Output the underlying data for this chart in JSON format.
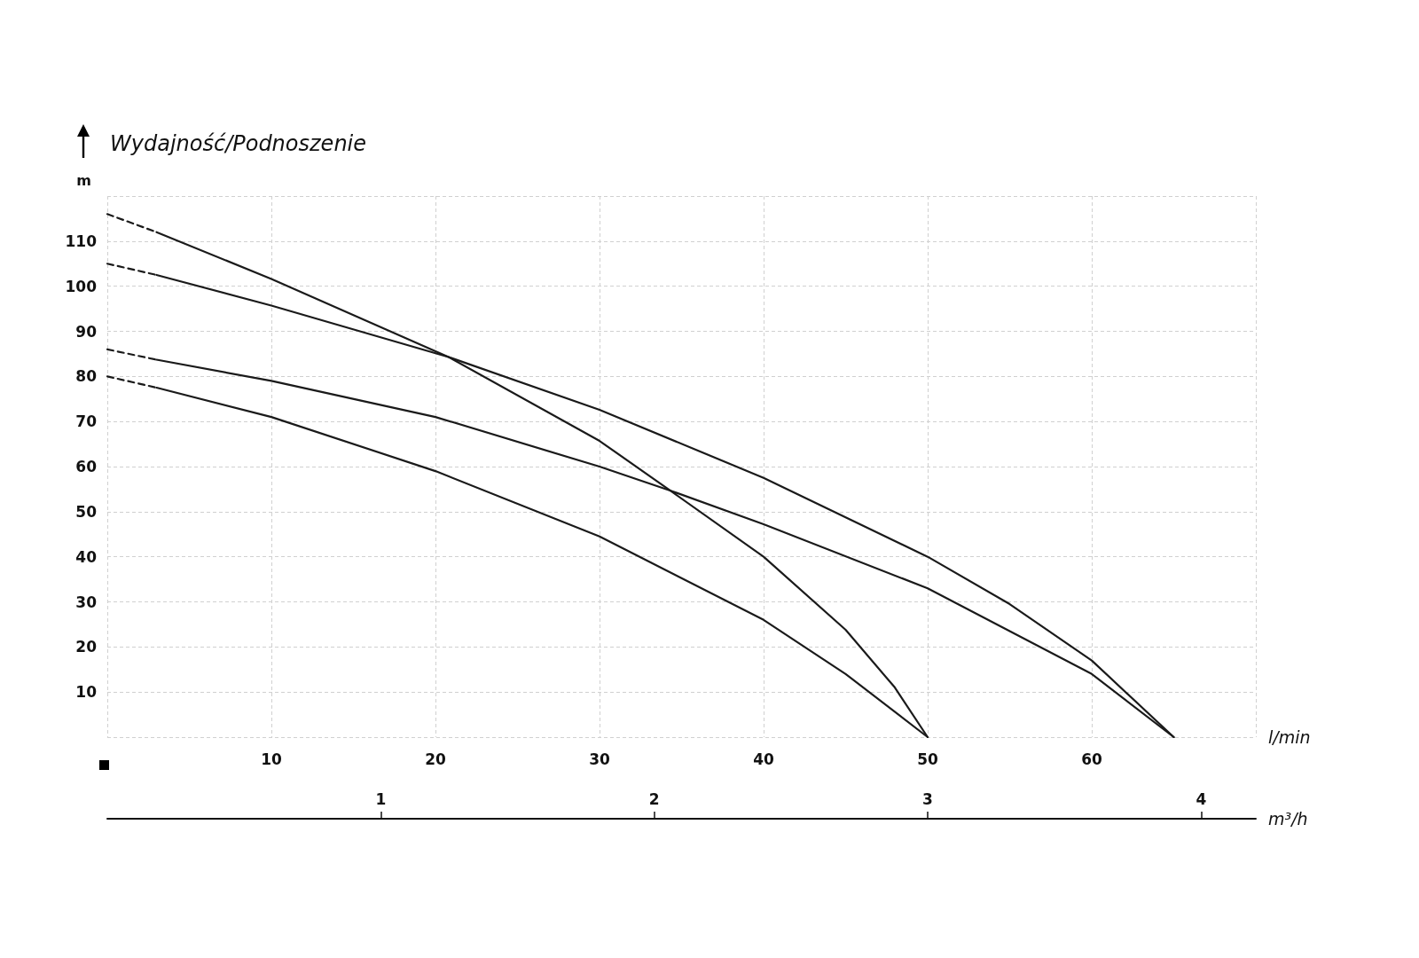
{
  "chart_data": {
    "type": "line",
    "title": "Wydajność/Podnoszenie",
    "ylabel": "m",
    "xlabel": "l/min",
    "x2label": "m³/h",
    "xlim": [
      0,
      70
    ],
    "xticks": [
      {
        "value": 0,
        "label": null
      },
      10,
      20,
      30,
      40,
      50,
      60,
      {
        "value": 70,
        "label": null
      }
    ],
    "ylim": [
      0,
      120
    ],
    "yticks": [
      {
        "value": 0,
        "label": null
      },
      10,
      20,
      30,
      40,
      50,
      60,
      70,
      80,
      90,
      100,
      110,
      {
        "value": 120,
        "label": null
      }
    ],
    "x2lim": [
      0,
      4.2
    ],
    "x2ticks": [
      1,
      2,
      3,
      4
    ],
    "grid": true,
    "marker": "none",
    "line_style": "solid",
    "series": [
      {
        "color": "#1a1a1a",
        "line_style": "dashed",
        "x": [
          0,
          3
        ],
        "values": [
          116,
          112
        ]
      },
      {
        "color": "#1a1a1a",
        "x": [
          3,
          10,
          20.8,
          30,
          34.3,
          40,
          45,
          48,
          50
        ],
        "values": [
          112,
          101.6,
          84.3,
          65.7,
          54.7,
          40,
          23.8,
          11,
          0
        ]
      },
      {
        "color": "#1a1a1a",
        "line_style": "dashed",
        "x": [
          0,
          3
        ],
        "values": [
          105,
          102.5
        ]
      },
      {
        "color": "#1a1a1a",
        "x": [
          3,
          10,
          20.8,
          30,
          40,
          50,
          55,
          60,
          65
        ],
        "values": [
          102.5,
          95.7,
          84.3,
          72.6,
          57.5,
          40,
          29.5,
          17,
          0
        ]
      },
      {
        "color": "#1a1a1a",
        "line_style": "dashed",
        "x": [
          0,
          3
        ],
        "values": [
          86,
          83.7
        ]
      },
      {
        "color": "#1a1a1a",
        "x": [
          3,
          10,
          20,
          30,
          34.3,
          40,
          50,
          60,
          65
        ],
        "values": [
          83.7,
          79,
          71,
          60,
          54.7,
          47.2,
          33,
          14,
          0
        ]
      },
      {
        "color": "#1a1a1a",
        "line_style": "dashed",
        "x": [
          0,
          3
        ],
        "values": [
          80,
          77.5
        ]
      },
      {
        "color": "#1a1a1a",
        "x": [
          3,
          10,
          20,
          30,
          40,
          45,
          50
        ],
        "values": [
          77.5,
          71,
          59,
          44.5,
          26,
          14,
          0
        ]
      }
    ]
  }
}
